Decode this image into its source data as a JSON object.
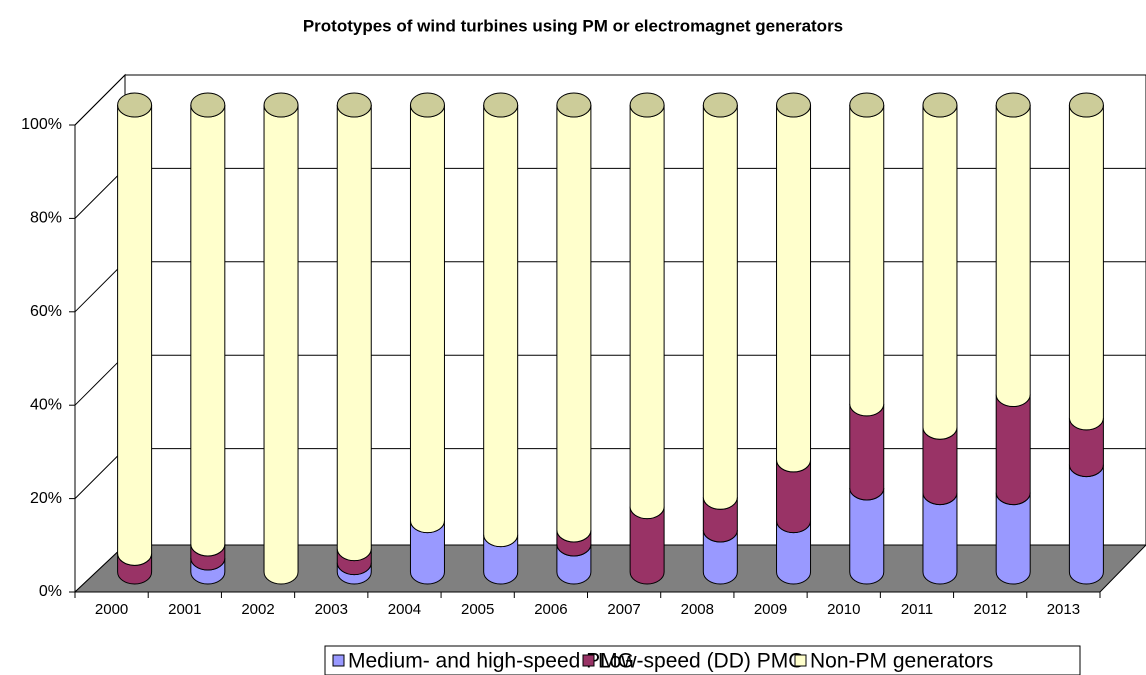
{
  "chart_data": {
    "type": "bar",
    "stacked": true,
    "title": "Prototypes of wind turbines using PM or electromagnet generators",
    "categories": [
      "2000",
      "2001",
      "2002",
      "2003",
      "2004",
      "2005",
      "2006",
      "2007",
      "2008",
      "2009",
      "2010",
      "2011",
      "2012",
      "2013"
    ],
    "series": [
      {
        "name": "Medium- and high-speed PMG",
        "color": "#9999ff",
        "values": [
          0,
          3,
          0,
          2,
          11,
          8,
          6,
          0,
          9,
          11,
          18,
          17,
          17,
          23
        ]
      },
      {
        "name": "Low-speed (DD) PMG",
        "color": "#993366",
        "values": [
          4,
          3,
          0,
          3,
          0,
          0,
          3,
          14,
          7,
          13,
          18,
          14,
          21,
          10
        ]
      },
      {
        "name": "Non-PM generators",
        "color": "#ffffcc",
        "values": [
          96,
          94,
          100,
          95,
          89,
          92,
          91,
          86,
          84,
          76,
          64,
          69,
          62,
          67
        ]
      }
    ],
    "ylim": [
      0,
      100
    ],
    "yticks": [
      {
        "value": 0,
        "label": "0%"
      },
      {
        "value": 20,
        "label": "20%"
      },
      {
        "value": 40,
        "label": "40%"
      },
      {
        "value": 60,
        "label": "60%"
      },
      {
        "value": 80,
        "label": "80%"
      },
      {
        "value": 100,
        "label": "100%"
      }
    ],
    "grid": true,
    "legend": "bottom"
  }
}
